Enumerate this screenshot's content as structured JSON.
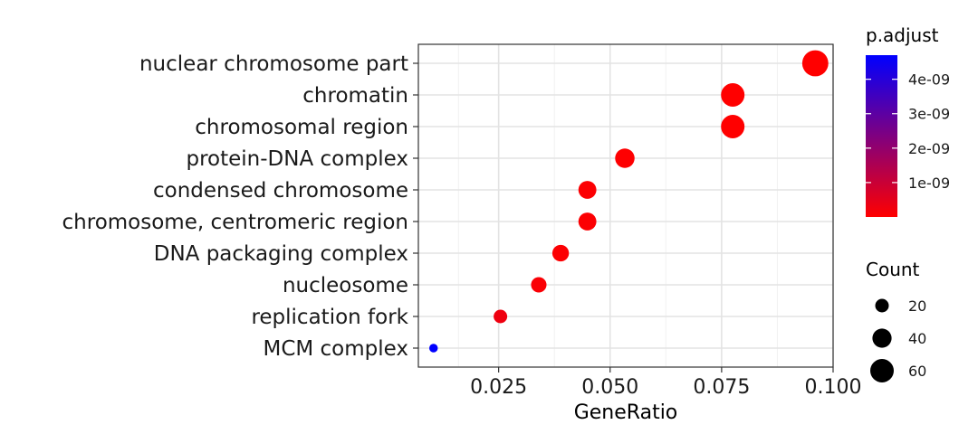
{
  "chart_data": {
    "type": "scatter",
    "xlabel": "GeneRatio",
    "ylabel": "",
    "xlim": [
      0.007,
      0.1
    ],
    "x_ticks": [
      {
        "value": 0.025,
        "label": "0.025"
      },
      {
        "value": 0.05,
        "label": "0.050"
      },
      {
        "value": 0.075,
        "label": "0.075"
      },
      {
        "value": 0.1,
        "label": "0.100"
      }
    ],
    "grid": true,
    "legend_position": "right",
    "categories": [
      "nuclear chromosome part",
      "chromatin",
      "chromosomal region",
      "protein-DNA complex",
      "condensed chromosome",
      "chromosome, centromeric region",
      "DNA packaging complex",
      "nucleosome",
      "replication fork",
      "MCM complex"
    ],
    "points": [
      {
        "term": "nuclear chromosome part",
        "gene_ratio": 0.096,
        "count": 74,
        "p_adjust": 1e-13
      },
      {
        "term": "chromatin",
        "gene_ratio": 0.0775,
        "count": 60,
        "p_adjust": 1e-12
      },
      {
        "term": "chromosomal region",
        "gene_ratio": 0.0775,
        "count": 60,
        "p_adjust": 1e-12
      },
      {
        "term": "protein-DNA complex",
        "gene_ratio": 0.0533,
        "count": 41,
        "p_adjust": 2e-11
      },
      {
        "term": "condensed chromosome",
        "gene_ratio": 0.0449,
        "count": 35,
        "p_adjust": 5e-11
      },
      {
        "term": "chromosome, centromeric region",
        "gene_ratio": 0.0449,
        "count": 35,
        "p_adjust": 5e-11
      },
      {
        "term": "DNA packaging complex",
        "gene_ratio": 0.0389,
        "count": 30,
        "p_adjust": 6e-11
      },
      {
        "term": "nucleosome",
        "gene_ratio": 0.034,
        "count": 26,
        "p_adjust": 1e-10
      },
      {
        "term": "replication fork",
        "gene_ratio": 0.0254,
        "count": 20,
        "p_adjust": 3e-10
      },
      {
        "term": "MCM complex",
        "gene_ratio": 0.0104,
        "count": 8,
        "p_adjust": 4.7e-09
      }
    ],
    "color_legend": {
      "title": "p.adjust",
      "range": [
        0,
        4.7e-09
      ],
      "low_color": "#ff0000",
      "high_color": "#0000ff",
      "ticks": [
        {
          "value": 1e-09,
          "label": "1e-09"
        },
        {
          "value": 2e-09,
          "label": "2e-09"
        },
        {
          "value": 3e-09,
          "label": "3e-09"
        },
        {
          "value": 4e-09,
          "label": "4e-09"
        }
      ]
    },
    "size_legend": {
      "title": "Count",
      "items": [
        {
          "value": 20,
          "label": "20"
        },
        {
          "value": 40,
          "label": "40"
        },
        {
          "value": 60,
          "label": "60"
        }
      ]
    }
  }
}
